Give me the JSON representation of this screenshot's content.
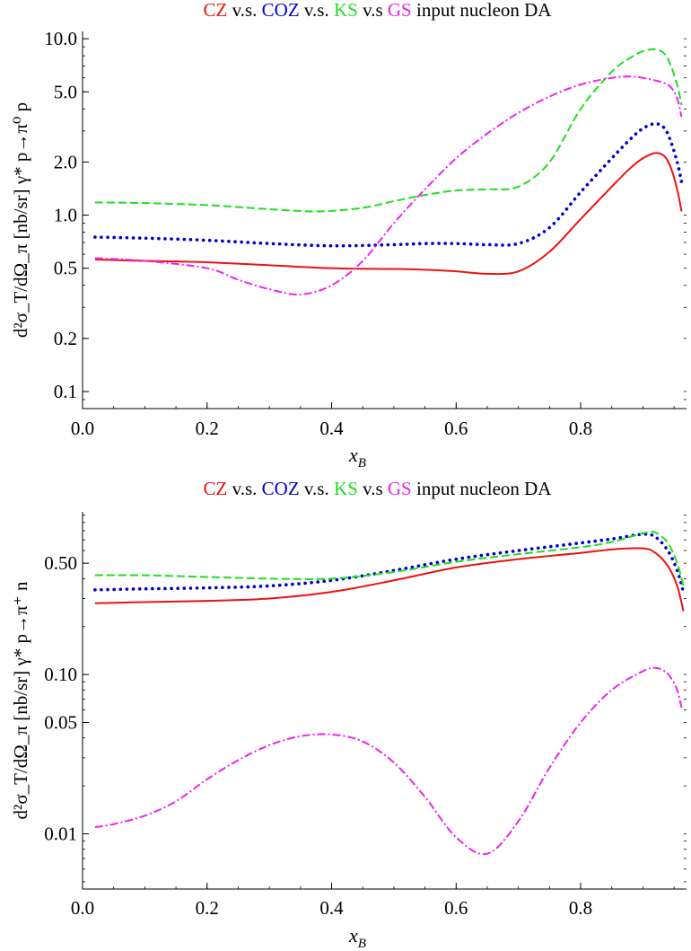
{
  "colors": {
    "CZ": "#ee1111",
    "COZ": "#0000cc",
    "KS": "#22dd22",
    "GS": "#ee22ee",
    "axis": "#000000",
    "text": "#000000"
  },
  "chart_data": [
    {
      "type": "line",
      "title_parts": [
        {
          "text": "CZ",
          "color": "#ee1111"
        },
        {
          "text": " v.s. ",
          "color": "#000000"
        },
        {
          "text": "COZ",
          "color": "#0000cc"
        },
        {
          "text": " v.s. ",
          "color": "#000000"
        },
        {
          "text": "KS",
          "color": "#22dd22"
        },
        {
          "text": "  v.s ",
          "color": "#000000"
        },
        {
          "text": "GS",
          "color": "#ee22ee"
        },
        {
          "text": " input nucleon DA",
          "color": "#000000"
        }
      ],
      "xlabel": "x_B",
      "ylabel": "d²σ_T/dΩ_π [nb/sr] γ* p→π⁰ p",
      "yscale": "log",
      "xlim": [
        0.0,
        0.97
      ],
      "ylim": [
        0.08,
        11
      ],
      "xticks": [
        0.0,
        0.2,
        0.4,
        0.6,
        0.8
      ],
      "xtick_labels": [
        "0.0",
        "0.2",
        "0.4",
        "0.6",
        "0.8"
      ],
      "yticks": [
        0.1,
        0.2,
        0.5,
        1.0,
        2.0,
        5.0,
        10.0
      ],
      "ytick_labels": [
        "0.1",
        "0.2",
        "0.5",
        "1.0",
        "2.0",
        "5.0",
        "10.0"
      ],
      "series": [
        {
          "name": "CZ",
          "color": "#ee1111",
          "style": "solid",
          "x": [
            0.02,
            0.1,
            0.2,
            0.3,
            0.4,
            0.5,
            0.55,
            0.6,
            0.65,
            0.7,
            0.75,
            0.8,
            0.85,
            0.88,
            0.9,
            0.92,
            0.935,
            0.945,
            0.955,
            0.962
          ],
          "y": [
            0.56,
            0.55,
            0.54,
            0.52,
            0.5,
            0.495,
            0.49,
            0.48,
            0.465,
            0.48,
            0.62,
            0.95,
            1.45,
            1.85,
            2.1,
            2.25,
            2.15,
            1.85,
            1.4,
            1.05
          ]
        },
        {
          "name": "COZ",
          "color": "#0000cc",
          "style": "dotted",
          "x": [
            0.02,
            0.1,
            0.2,
            0.3,
            0.4,
            0.5,
            0.55,
            0.6,
            0.65,
            0.7,
            0.75,
            0.8,
            0.85,
            0.88,
            0.9,
            0.92,
            0.935,
            0.945,
            0.955,
            0.962
          ],
          "y": [
            0.75,
            0.74,
            0.72,
            0.69,
            0.67,
            0.68,
            0.69,
            0.69,
            0.68,
            0.69,
            0.85,
            1.35,
            2.1,
            2.7,
            3.1,
            3.3,
            3.1,
            2.6,
            2.0,
            1.55
          ]
        },
        {
          "name": "KS",
          "color": "#22dd22",
          "style": "dashed",
          "x": [
            0.02,
            0.1,
            0.2,
            0.3,
            0.38,
            0.45,
            0.5,
            0.55,
            0.6,
            0.65,
            0.7,
            0.75,
            0.8,
            0.85,
            0.88,
            0.9,
            0.92,
            0.935,
            0.945,
            0.955,
            0.962
          ],
          "y": [
            1.18,
            1.17,
            1.14,
            1.08,
            1.05,
            1.1,
            1.2,
            1.3,
            1.38,
            1.4,
            1.45,
            2.0,
            4.0,
            6.5,
            7.8,
            8.5,
            8.7,
            8.2,
            7.0,
            5.5,
            4.2
          ]
        },
        {
          "name": "GS",
          "color": "#ee22ee",
          "style": "dashdot",
          "x": [
            0.02,
            0.1,
            0.2,
            0.25,
            0.3,
            0.35,
            0.4,
            0.45,
            0.5,
            0.55,
            0.6,
            0.65,
            0.7,
            0.75,
            0.8,
            0.85,
            0.88,
            0.9,
            0.92,
            0.935,
            0.945,
            0.955,
            0.962
          ],
          "y": [
            0.57,
            0.55,
            0.5,
            0.43,
            0.38,
            0.355,
            0.4,
            0.55,
            0.9,
            1.4,
            2.1,
            2.9,
            3.8,
            4.7,
            5.5,
            6.0,
            6.1,
            6.0,
            5.8,
            5.6,
            5.3,
            4.6,
            3.6
          ]
        }
      ]
    },
    {
      "type": "line",
      "title_parts": [
        {
          "text": "CZ",
          "color": "#ee1111"
        },
        {
          "text": " v.s. ",
          "color": "#000000"
        },
        {
          "text": "COZ",
          "color": "#0000cc"
        },
        {
          "text": " v.s. ",
          "color": "#000000"
        },
        {
          "text": "KS",
          "color": "#22dd22"
        },
        {
          "text": "  v.s ",
          "color": "#000000"
        },
        {
          "text": "GS",
          "color": "#ee22ee"
        },
        {
          "text": " input nucleon DA",
          "color": "#000000"
        }
      ],
      "xlabel": "x_B",
      "ylabel": "d²σ_T/dΩ_π [nb/sr] γ* p→π⁺ n",
      "yscale": "log",
      "xlim": [
        0.0,
        0.97
      ],
      "ylim": [
        0.0045,
        1.05
      ],
      "xticks": [
        0.0,
        0.2,
        0.4,
        0.6,
        0.8
      ],
      "xtick_labels": [
        "0.0",
        "0.2",
        "0.4",
        "0.6",
        "0.8"
      ],
      "yticks": [
        0.01,
        0.05,
        0.1,
        0.5
      ],
      "ytick_labels": [
        "0.01",
        "0.05",
        "0.10",
        "0.50"
      ],
      "series": [
        {
          "name": "CZ",
          "color": "#ee1111",
          "style": "solid",
          "x": [
            0.02,
            0.1,
            0.2,
            0.3,
            0.4,
            0.5,
            0.6,
            0.7,
            0.8,
            0.85,
            0.9,
            0.92,
            0.94,
            0.955,
            0.965
          ],
          "y": [
            0.28,
            0.285,
            0.29,
            0.3,
            0.33,
            0.39,
            0.47,
            0.53,
            0.58,
            0.61,
            0.62,
            0.58,
            0.48,
            0.36,
            0.25
          ]
        },
        {
          "name": "COZ",
          "color": "#0000cc",
          "style": "dotted",
          "x": [
            0.02,
            0.1,
            0.2,
            0.3,
            0.4,
            0.5,
            0.6,
            0.7,
            0.8,
            0.85,
            0.9,
            0.92,
            0.94,
            0.955,
            0.965
          ],
          "y": [
            0.34,
            0.345,
            0.35,
            0.36,
            0.39,
            0.45,
            0.53,
            0.6,
            0.67,
            0.71,
            0.76,
            0.73,
            0.6,
            0.45,
            0.33
          ]
        },
        {
          "name": "KS",
          "color": "#22dd22",
          "style": "dashed",
          "x": [
            0.02,
            0.1,
            0.2,
            0.3,
            0.4,
            0.5,
            0.6,
            0.7,
            0.8,
            0.85,
            0.9,
            0.92,
            0.94,
            0.955,
            0.965
          ],
          "y": [
            0.42,
            0.42,
            0.41,
            0.4,
            0.4,
            0.44,
            0.51,
            0.57,
            0.63,
            0.68,
            0.77,
            0.78,
            0.67,
            0.5,
            0.36
          ]
        },
        {
          "name": "GS",
          "color": "#ee22ee",
          "style": "dashdot",
          "x": [
            0.02,
            0.05,
            0.1,
            0.15,
            0.2,
            0.25,
            0.3,
            0.35,
            0.4,
            0.45,
            0.5,
            0.55,
            0.6,
            0.65,
            0.7,
            0.75,
            0.8,
            0.85,
            0.9,
            0.92,
            0.935,
            0.945,
            0.955,
            0.962
          ],
          "y": [
            0.011,
            0.0115,
            0.013,
            0.016,
            0.022,
            0.029,
            0.036,
            0.041,
            0.042,
            0.038,
            0.028,
            0.017,
            0.0095,
            0.0075,
            0.012,
            0.026,
            0.05,
            0.08,
            0.105,
            0.11,
            0.105,
            0.095,
            0.08,
            0.062
          ]
        }
      ]
    }
  ]
}
